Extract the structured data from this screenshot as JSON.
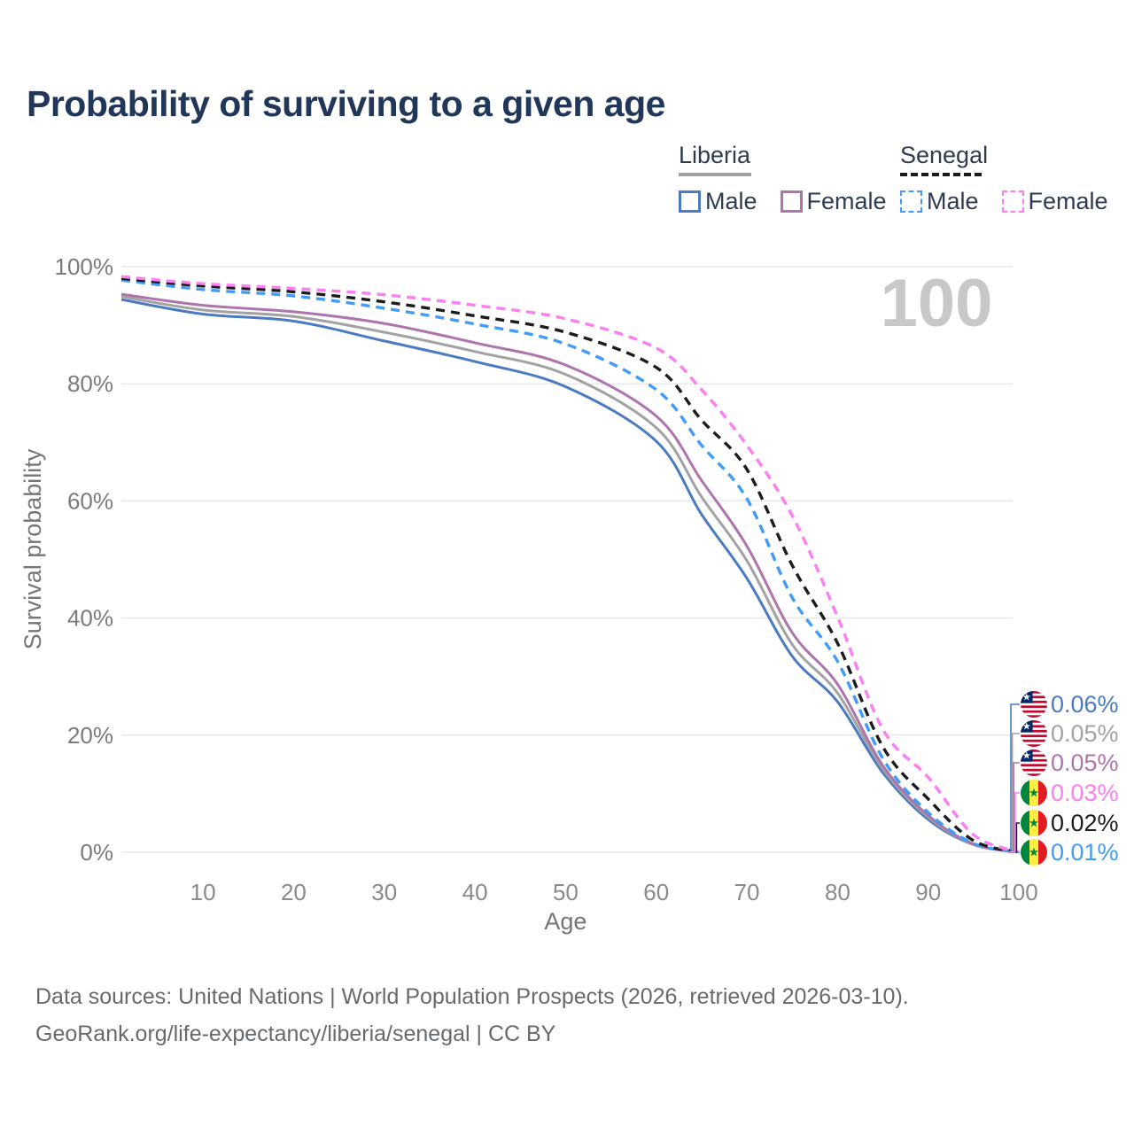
{
  "header": {
    "title": "Probability of surviving to a given age"
  },
  "legend": {
    "groups": [
      {
        "country": "Liberia",
        "line_style": "solid",
        "underline_color": "#a2a2a2",
        "items": [
          {
            "label": "Male",
            "color": "#4a7ac1"
          },
          {
            "label": "Female",
            "color": "#ad74ad"
          }
        ]
      },
      {
        "country": "Senegal",
        "line_style": "dashed",
        "underline_color": "#1c1c1c",
        "items": [
          {
            "label": "Male",
            "color": "#419bf7"
          },
          {
            "label": "Female",
            "color": "#fb7ef2"
          }
        ]
      }
    ]
  },
  "chart_data": {
    "type": "line",
    "title": "Probability of surviving to a given age",
    "xlabel": "Age",
    "ylabel": "Survival probability",
    "xlim": [
      1,
      100
    ],
    "ylim": [
      0,
      100
    ],
    "x_ticks": [
      10,
      20,
      30,
      40,
      50,
      60,
      70,
      80,
      90,
      100
    ],
    "y_ticks": [
      0,
      20,
      40,
      60,
      80,
      100
    ],
    "y_tick_suffix": "%",
    "grid": "horizontal",
    "watermark": "100",
    "x": [
      1,
      10,
      20,
      30,
      40,
      50,
      60,
      65,
      70,
      75,
      80,
      85,
      90,
      95,
      100
    ],
    "series": [
      {
        "id": "liberia-male",
        "country": "Liberia",
        "group": "Male",
        "style": "solid",
        "color": "#4a7ac1",
        "values": [
          94.4,
          91.9,
          90.7,
          87.3,
          83.8,
          79.5,
          70.2,
          57.7,
          46.8,
          33.5,
          25.7,
          13.6,
          5.6,
          1.3,
          0.06
        ],
        "end_label": {
          "value": "0.06%",
          "row": 0,
          "flag": "liberia"
        }
      },
      {
        "id": "liberia-all",
        "country": "Liberia",
        "group": "All",
        "style": "solid",
        "color": "#a2a2a2",
        "values": [
          94.9,
          92.6,
          91.5,
          88.8,
          85.5,
          81.6,
          72.5,
          60.7,
          49.8,
          35.5,
          27.2,
          14.2,
          6.0,
          1.35,
          0.05
        ],
        "end_label": {
          "value": "0.05%",
          "row": 1,
          "flag": "liberia"
        }
      },
      {
        "id": "liberia-female",
        "country": "Liberia",
        "group": "Female",
        "style": "solid",
        "color": "#ad74ad",
        "values": [
          95.3,
          93.4,
          92.3,
          90.3,
          87.0,
          83.2,
          74.5,
          63.5,
          52.3,
          37.5,
          28.7,
          14.8,
          6.3,
          1.4,
          0.05
        ],
        "end_label": {
          "value": "0.05%",
          "row": 2,
          "flag": "liberia"
        }
      },
      {
        "id": "senegal-male",
        "country": "Senegal",
        "group": "Male",
        "style": "dashed",
        "color": "#419bf7",
        "values": [
          97.7,
          96.1,
          95.0,
          92.9,
          90.2,
          86.8,
          79.0,
          69.5,
          60.4,
          43.5,
          32.6,
          16.0,
          6.8,
          1.5,
          0.01
        ],
        "end_label": {
          "value": "0.01%",
          "row": 5,
          "flag": "senegal"
        }
      },
      {
        "id": "senegal-all",
        "country": "Senegal",
        "group": "All",
        "style": "dashed",
        "color": "#1c1c1c",
        "values": [
          98.0,
          96.7,
          95.7,
          94.0,
          91.6,
          88.8,
          82.8,
          73.8,
          65.4,
          49.0,
          35.7,
          18.0,
          9.1,
          2.0,
          0.02
        ],
        "end_label": {
          "value": "0.02%",
          "row": 4,
          "flag": "senegal"
        }
      },
      {
        "id": "senegal-female",
        "country": "Senegal",
        "group": "Female",
        "style": "dashed",
        "color": "#fb7ef2",
        "values": [
          98.3,
          97.1,
          96.3,
          95.2,
          93.4,
          91.1,
          86.1,
          79.0,
          69.5,
          57.5,
          40.2,
          21.0,
          12.8,
          3.0,
          0.03
        ],
        "end_label": {
          "value": "0.03%",
          "row": 3,
          "flag": "senegal"
        }
      }
    ]
  },
  "footer": {
    "line1": "Data sources: United Nations | World Population Prospects (2026, retrieved 2026-03-10).",
    "line2": "GeoRank.org/life-expectancy/liberia/senegal | CC BY"
  }
}
